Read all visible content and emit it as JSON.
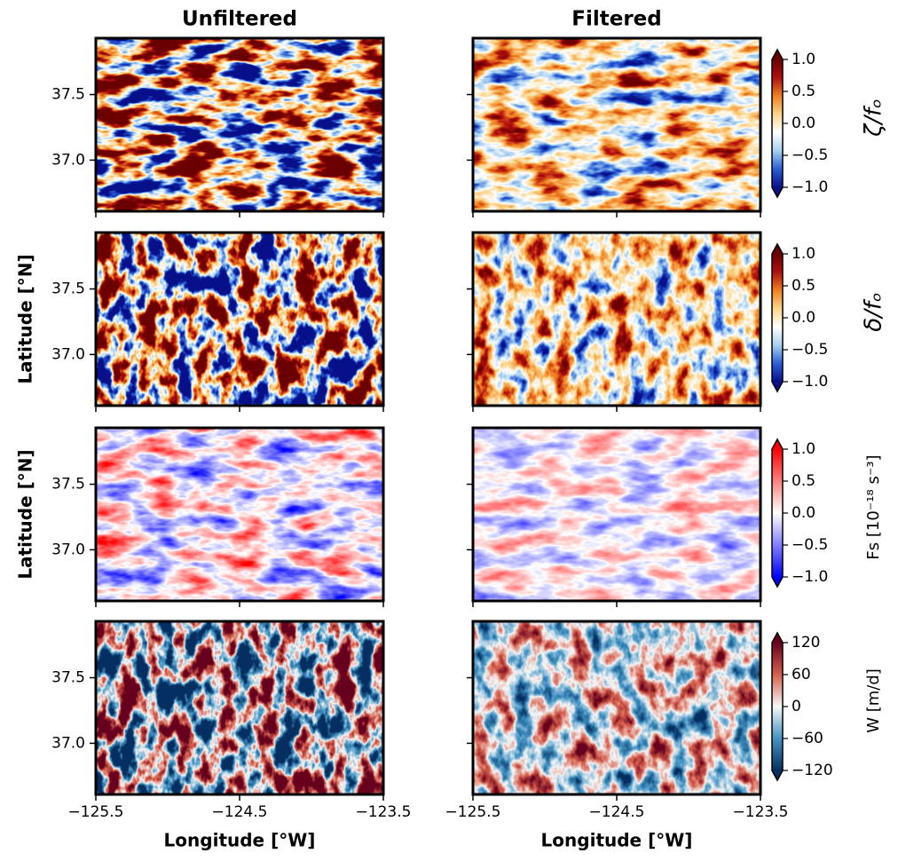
{
  "chart_data": {
    "type": "heatmap-grid",
    "columns": [
      {
        "title": "Unfiltered",
        "xlabel": "Longitude [°W]"
      },
      {
        "title": "Filtered",
        "xlabel": "Longitude [°W]"
      }
    ],
    "xlim": [
      -125.5,
      -123.5
    ],
    "xticks": [
      {
        "value": -125.5,
        "label": "−125.5"
      },
      {
        "value": -124.5,
        "label": "−124.5"
      },
      {
        "value": -123.5,
        "label": "−123.5"
      }
    ],
    "ylim": [
      36.61,
      37.93
    ],
    "yticks": [
      {
        "value": 37.0,
        "label": "37.0"
      },
      37.5
    ],
    "rows": [
      {
        "colorbar_label": "ζ/fₒ",
        "clim": [
          -1,
          1
        ],
        "cticks": [
          {
            "value": -1,
            "label": "−1.0"
          },
          {
            "value": -0.5,
            "label": "−0.5"
          },
          {
            "value": 0,
            "label": "0.0"
          },
          0.5,
          {
            "value": 1,
            "label": "1.0"
          }
        ],
        "colormap": [
          "#08108a",
          "#2a5fd8",
          "#a8d0f0",
          "#ffffff",
          "#fcd48a",
          "#f08020",
          "#b01010",
          "#6a0000"
        ]
      },
      {
        "colorbar_label": "δ/fₒ",
        "ylabel": "Latitude [°N]",
        "clim": [
          -1,
          1
        ],
        "cticks": [
          {
            "value": -1,
            "label": "−1.0"
          },
          {
            "value": -0.5,
            "label": "−0.5"
          },
          {
            "value": 0,
            "label": "0.0"
          },
          0.5,
          {
            "value": 1,
            "label": "1.0"
          }
        ],
        "colormap": [
          "#08108a",
          "#2a5fd8",
          "#a8d0f0",
          "#ffffff",
          "#fcd48a",
          "#f08020",
          "#b01010",
          "#6a0000"
        ]
      },
      {
        "colorbar_label": "Fs [10⁻¹⁸ s⁻³]",
        "ylabel": "Latitude [°N]",
        "clim": [
          -1,
          1
        ],
        "cticks": [
          {
            "value": -1,
            "label": "−1.0"
          },
          {
            "value": -0.5,
            "label": "−0.5"
          },
          {
            "value": 0,
            "label": "0.0"
          },
          0.5,
          {
            "value": 1,
            "label": "1.0"
          }
        ],
        "colormap": [
          "#0000ff",
          "#ffffff",
          "#ff0000"
        ]
      },
      {
        "colorbar_label": "W [m/d]",
        "clim": [
          -120,
          120
        ],
        "cticks": [
          {
            "value": -120,
            "label": "−120"
          },
          {
            "value": -60,
            "label": "−60"
          },
          0,
          60,
          120
        ],
        "colormap": [
          "#053061",
          "#4393c3",
          "#f7f7f7",
          "#d6604d",
          "#67001f"
        ]
      }
    ]
  }
}
